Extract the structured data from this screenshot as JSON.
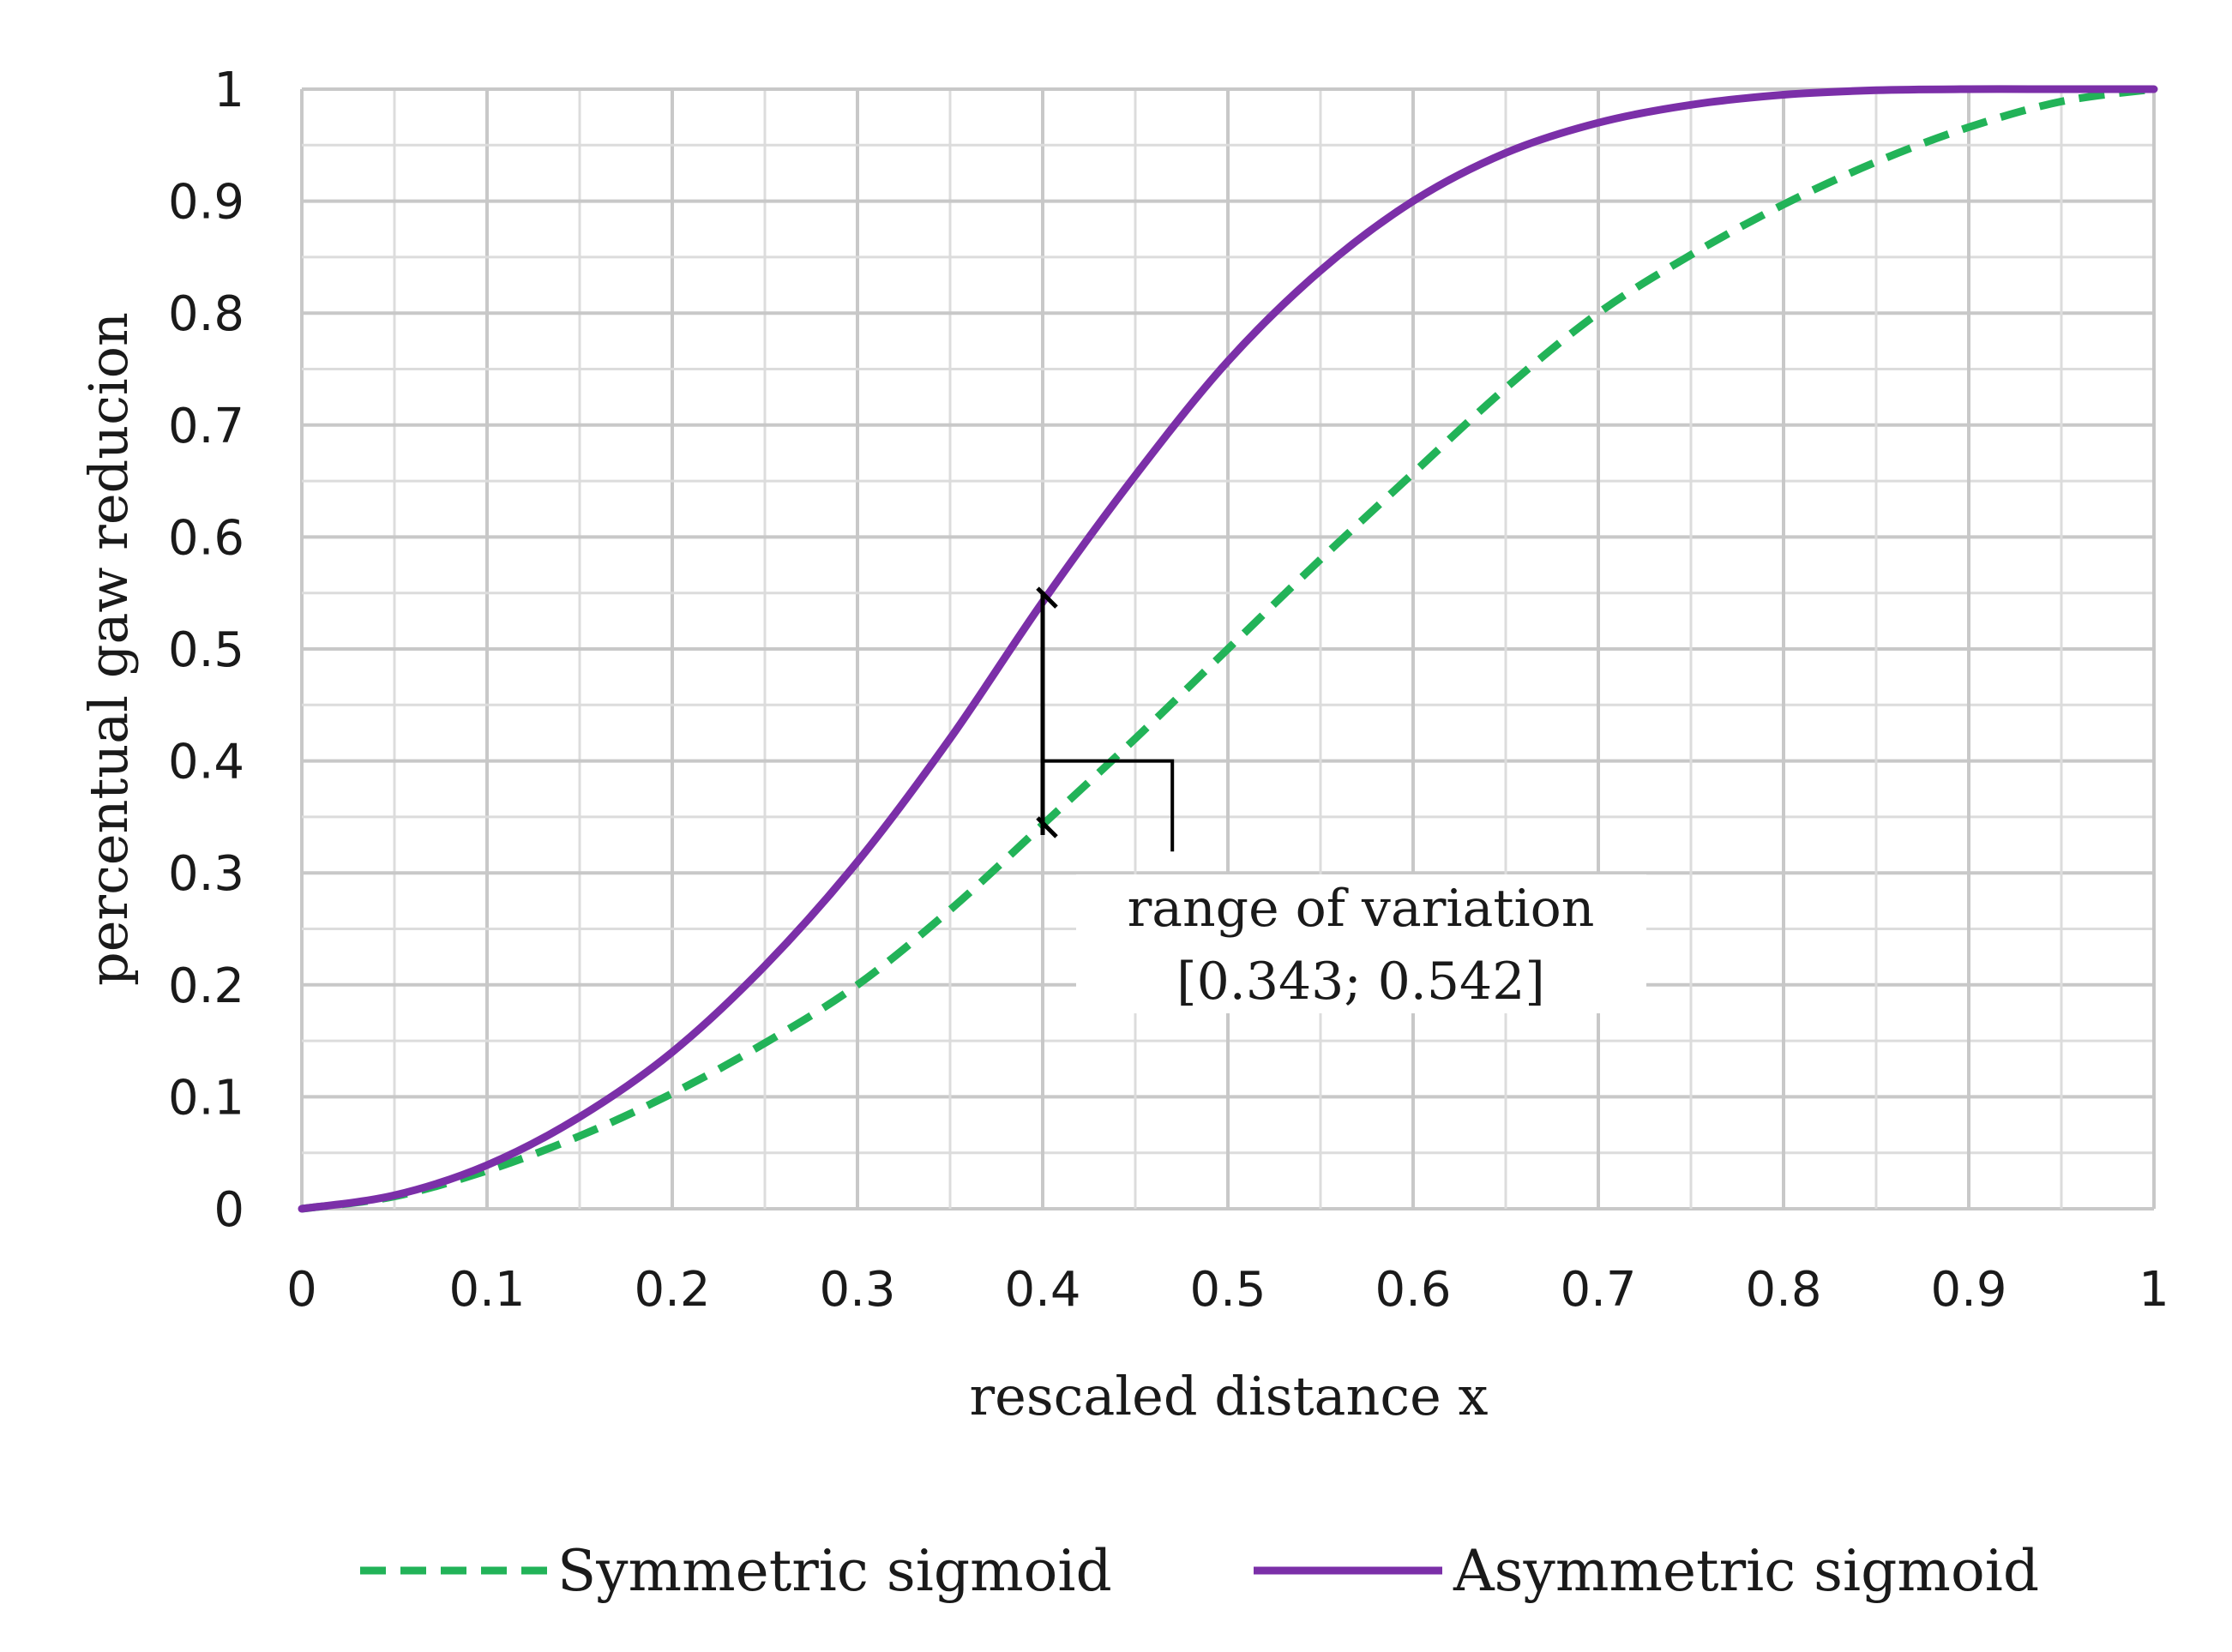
{
  "chart_data": {
    "type": "line",
    "xlabel": "rescaled distance x",
    "ylabel": "percentual gaw reducion",
    "xlim": [
      0,
      1
    ],
    "ylim": [
      0,
      1
    ],
    "x_ticks": [
      "0",
      "0.1",
      "0.2",
      "0.3",
      "0.4",
      "0.5",
      "0.6",
      "0.7",
      "0.8",
      "0.9",
      "1"
    ],
    "y_ticks": [
      "0",
      "0.1",
      "0.2",
      "0.3",
      "0.4",
      "0.5",
      "0.6",
      "0.7",
      "0.8",
      "0.9",
      "1"
    ],
    "grid": true,
    "legend_position": "bottom",
    "x": [
      0,
      0.05,
      0.1,
      0.15,
      0.2,
      0.25,
      0.3,
      0.35,
      0.4,
      0.45,
      0.5,
      0.55,
      0.6,
      0.65,
      0.7,
      0.75,
      0.8,
      0.85,
      0.9,
      0.95,
      1
    ],
    "series": [
      {
        "name": "Symmetric sigmoid",
        "style": "dashed",
        "color": "#22b358",
        "values": [
          0,
          0.011,
          0.034,
          0.065,
          0.103,
          0.148,
          0.2,
          0.267,
          0.343,
          0.42,
          0.5,
          0.58,
          0.657,
          0.733,
          0.8,
          0.852,
          0.897,
          0.935,
          0.966,
          0.989,
          1
        ]
      },
      {
        "name": "Asymmetric sigmoid",
        "style": "solid",
        "color": "#7b2fa8",
        "values": [
          0,
          0.012,
          0.039,
          0.082,
          0.14,
          0.217,
          0.31,
          0.42,
          0.542,
          0.655,
          0.757,
          0.838,
          0.9,
          0.943,
          0.97,
          0.986,
          0.995,
          0.999,
          1,
          1,
          1
        ]
      }
    ],
    "annotation": {
      "text_line1": "range of variation",
      "text_line2": "[0.343; 0.542]",
      "x": 0.4,
      "y_low": 0.343,
      "y_high": 0.542
    }
  }
}
